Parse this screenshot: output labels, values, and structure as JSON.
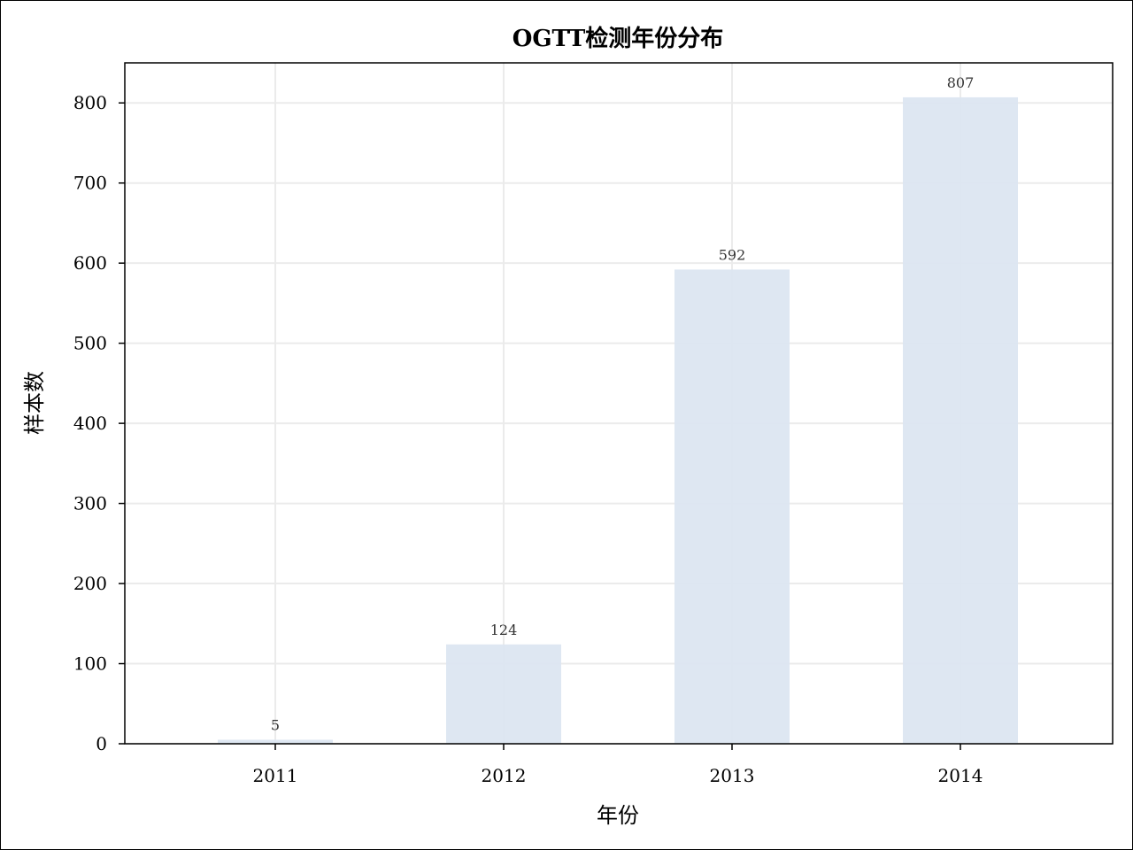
{
  "chart_data": {
    "type": "bar",
    "title": "OGTT检测年份分布",
    "xlabel": "年份",
    "ylabel": "样本数",
    "categories": [
      "2011",
      "2012",
      "2013",
      "2014"
    ],
    "values": [
      5,
      124,
      592,
      807
    ],
    "data_labels": [
      "5",
      "124",
      "592",
      "807"
    ],
    "yticks": [
      0,
      100,
      200,
      300,
      400,
      500,
      600,
      700,
      800
    ],
    "ylim": [
      0,
      850
    ],
    "grid": true,
    "legend": "none",
    "bar_color": "#dce6f1",
    "grid_color": "#ebebeb"
  }
}
